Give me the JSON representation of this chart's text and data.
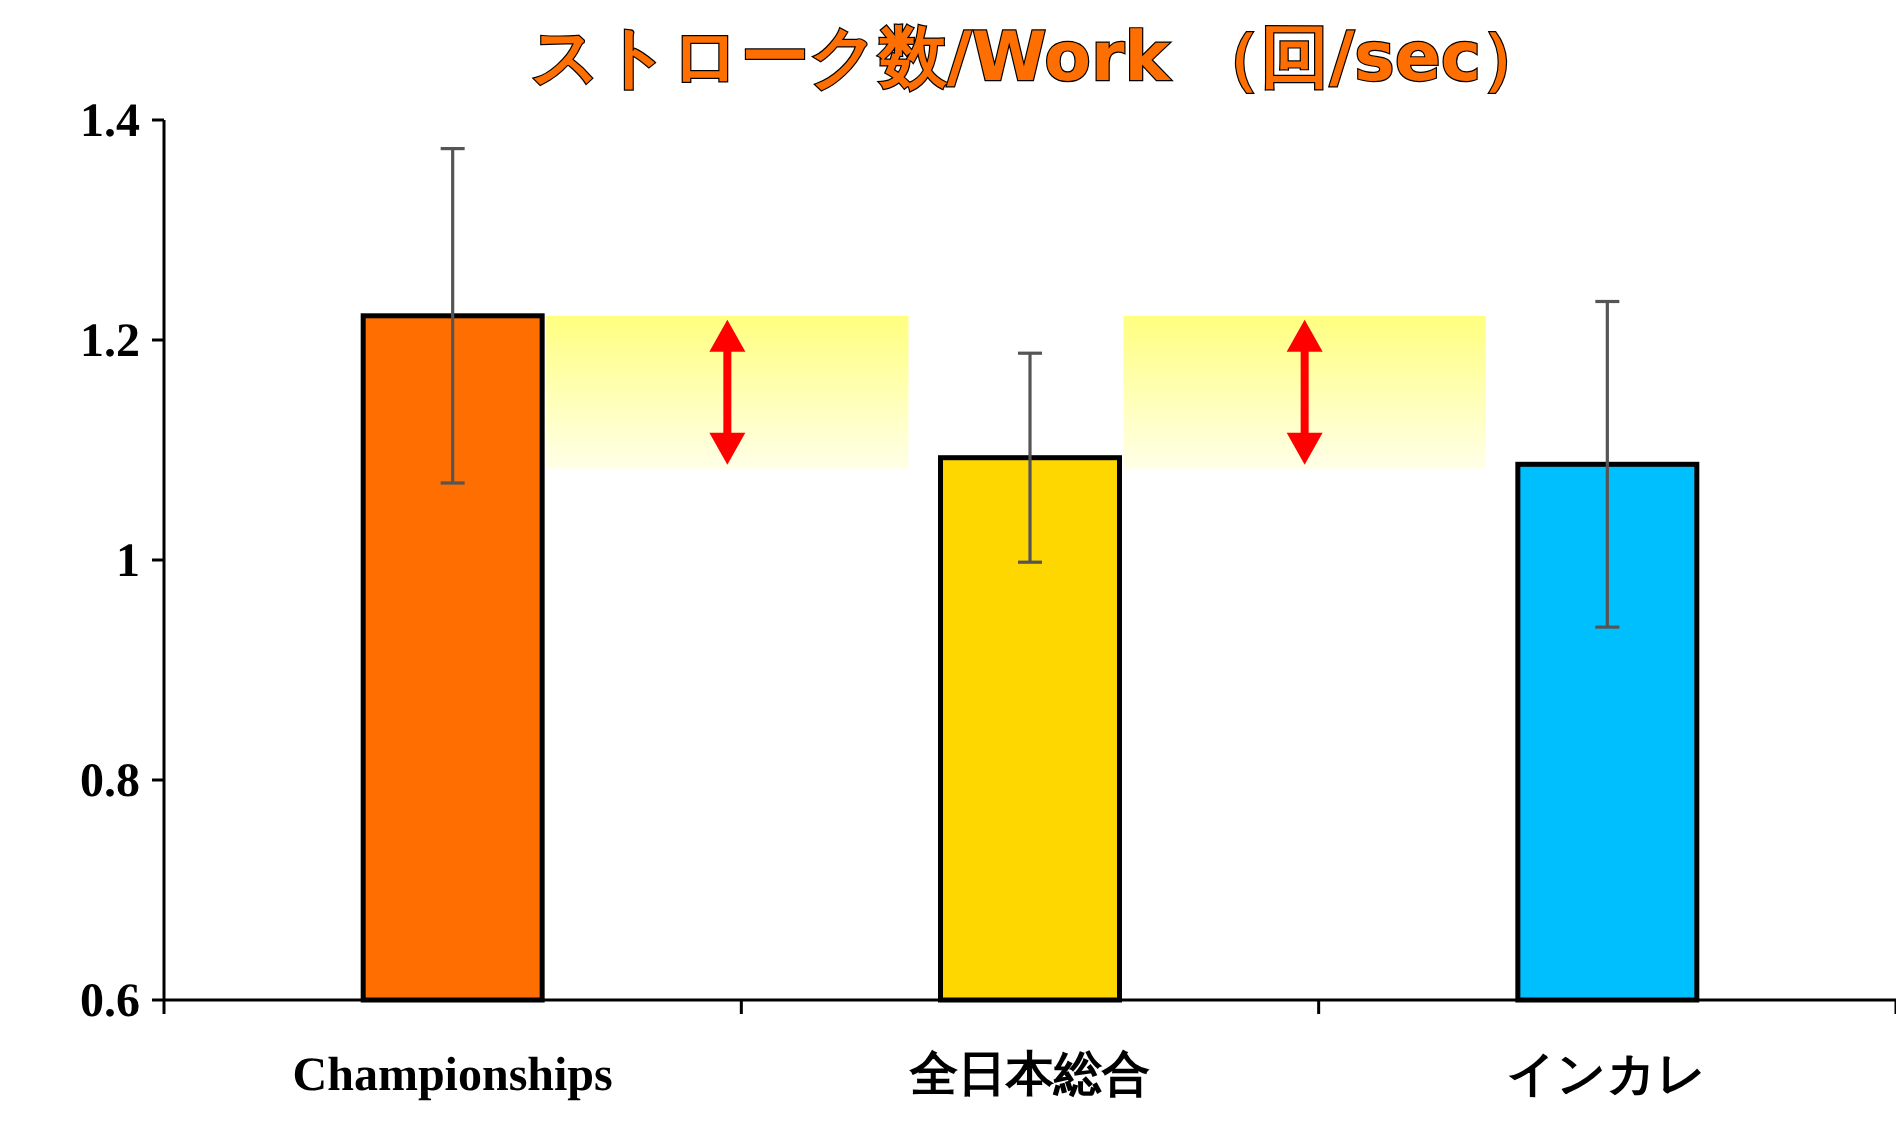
{
  "chart_data": {
    "type": "bar",
    "title": "ストローク数/Work （回/sec）",
    "categories": [
      "Championships",
      "全日本総合",
      "インカレ"
    ],
    "values": [
      1.222,
      1.093,
      1.087
    ],
    "errors": [
      0.152,
      0.095,
      0.148
    ],
    "colors": [
      "#ff6e00",
      "#ffd700",
      "#00bfff"
    ],
    "ylim": [
      0.6,
      1.4
    ],
    "yticks": [
      0.6,
      0.8,
      1,
      1.2,
      1.4
    ],
    "bands": [
      {
        "axis": "y",
        "from": 1.083,
        "to": 1.222,
        "color": "#ffff80"
      },
      {
        "axis": "y",
        "from": 1.083,
        "to": 1.222,
        "color": "#ffff80"
      }
    ],
    "grid": false
  }
}
